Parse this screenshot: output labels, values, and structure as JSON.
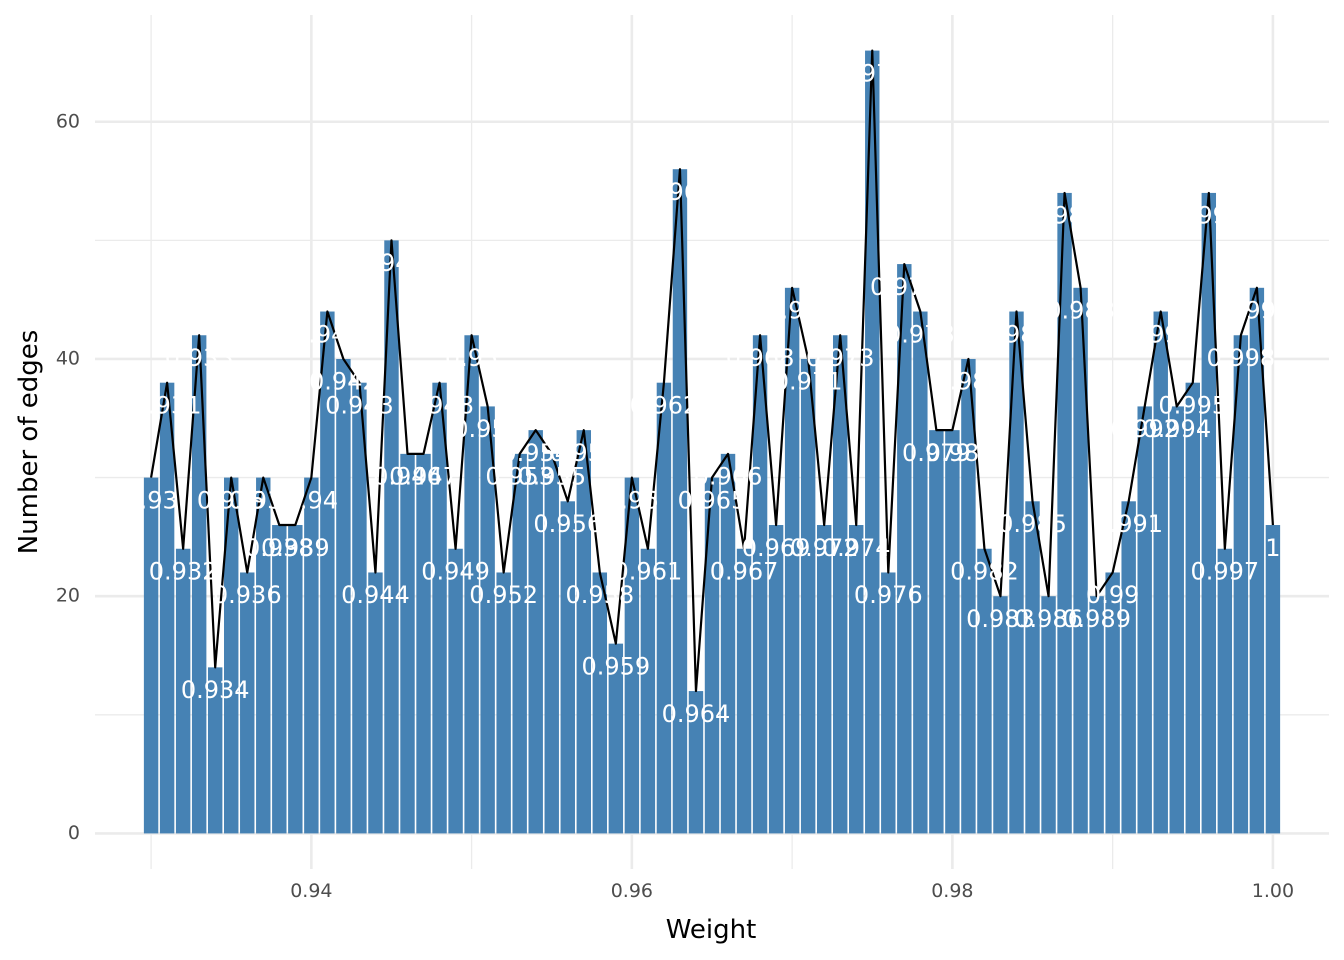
{
  "chart_data": {
    "type": "bar",
    "title": "",
    "xlabel": "Weight",
    "ylabel": "Number of edges",
    "xlim": [
      0.9265,
      1.0035
    ],
    "ylim": [
      -3,
      69
    ],
    "x_ticks": [
      0.94,
      0.96,
      0.98,
      1.0
    ],
    "x_tick_labels": [
      "0.94",
      "0.96",
      "0.98",
      "1.00"
    ],
    "y_ticks": [
      0,
      20,
      40,
      60
    ],
    "y_tick_labels": [
      "0",
      "20",
      "40",
      "60"
    ],
    "grid": true,
    "legend": "none",
    "bar_color": "#4682B4",
    "line_color": "#000000",
    "label_color": "#FFFFFF",
    "x": [
      0.93,
      0.931,
      0.932,
      0.933,
      0.934,
      0.935,
      0.936,
      0.937,
      0.938,
      0.939,
      0.94,
      0.941,
      0.942,
      0.943,
      0.944,
      0.945,
      0.946,
      0.947,
      0.948,
      0.949,
      0.95,
      0.951,
      0.952,
      0.953,
      0.954,
      0.955,
      0.956,
      0.957,
      0.958,
      0.959,
      0.96,
      0.961,
      0.962,
      0.963,
      0.964,
      0.965,
      0.966,
      0.967,
      0.968,
      0.969,
      0.97,
      0.971,
      0.972,
      0.973,
      0.974,
      0.975,
      0.976,
      0.977,
      0.978,
      0.979,
      0.98,
      0.981,
      0.982,
      0.983,
      0.984,
      0.985,
      0.986,
      0.987,
      0.988,
      0.989,
      0.99,
      0.991,
      0.992,
      0.993,
      0.994,
      0.995,
      0.996,
      0.997,
      0.998,
      0.999,
      1.0
    ],
    "values": [
      30,
      38,
      24,
      42,
      14,
      30,
      22,
      30,
      26,
      26,
      30,
      44,
      40,
      38,
      22,
      50,
      32,
      32,
      38,
      24,
      42,
      36,
      22,
      32,
      34,
      32,
      28,
      34,
      22,
      16,
      30,
      24,
      38,
      56,
      12,
      30,
      32,
      24,
      42,
      26,
      46,
      40,
      26,
      42,
      26,
      66,
      22,
      48,
      44,
      34,
      34,
      40,
      24,
      20,
      44,
      28,
      20,
      54,
      46,
      20,
      22,
      28,
      36,
      44,
      36,
      38,
      54,
      24,
      42,
      46,
      26
    ],
    "data_labels": [
      "0.93",
      "0.931",
      "0.932",
      "0.933",
      "0.934",
      "0.935",
      "0.936",
      "0.937",
      "0.938",
      "0.939",
      "0.94",
      "0.941",
      "0.942",
      "0.943",
      "0.944",
      "0.945",
      "0.946",
      "0.947",
      "0.948",
      "0.949",
      "0.95",
      "0.951",
      "0.952",
      "0.953",
      "0.954",
      "0.955",
      "0.956",
      "0.957",
      "0.958",
      "0.959",
      "0.96",
      "0.961",
      "0.962",
      "0.963",
      "0.964",
      "0.965",
      "0.966",
      "0.967",
      "0.968",
      "0.969",
      "0.97",
      "0.971",
      "0.972",
      "0.973",
      "0.974",
      "0.975",
      "0.976",
      "0.977",
      "0.978",
      "0.979",
      "0.98",
      "0.981",
      "0.982",
      "0.983",
      "0.984",
      "0.985",
      "0.986",
      "0.987",
      "0.988",
      "0.989",
      "0.99",
      "0.991",
      "0.992",
      "0.993",
      "0.994",
      "0.995",
      "0.996",
      "0.997",
      "0.998",
      "0.999",
      "1"
    ]
  }
}
